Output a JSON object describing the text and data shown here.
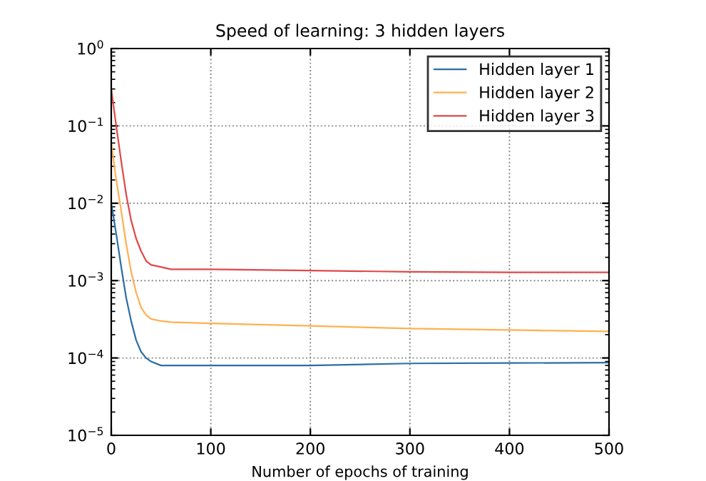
{
  "chart_data": {
    "type": "line",
    "title": "Speed of learning: 3 hidden layers",
    "xlabel": "Number of epochs of training",
    "x": [
      0,
      5,
      10,
      15,
      20,
      25,
      30,
      35,
      40,
      50,
      60,
      100,
      200,
      300,
      400,
      500
    ],
    "series": [
      {
        "name": "Hidden layer 1",
        "color": "#2c6ea6",
        "values": [
          0.01,
          0.004,
          0.0015,
          0.0006,
          0.0003,
          0.00017,
          0.00012,
          0.0001,
          9e-05,
          8e-05,
          8e-05,
          8e-05,
          8e-05,
          8.5e-05,
          8.6e-05,
          8.7e-05
        ]
      },
      {
        "name": "Hidden layer 2",
        "color": "#ffb050",
        "values": [
          0.06,
          0.02,
          0.008,
          0.003,
          0.0013,
          0.0007,
          0.00045,
          0.00036,
          0.00032,
          0.0003,
          0.00029,
          0.00028,
          0.00026,
          0.00024,
          0.00023,
          0.00022
        ]
      },
      {
        "name": "Hidden layer 3",
        "color": "#e04848",
        "values": [
          0.3,
          0.1,
          0.035,
          0.013,
          0.006,
          0.0035,
          0.0024,
          0.0018,
          0.0016,
          0.0015,
          0.0014,
          0.0014,
          0.00135,
          0.0013,
          0.00128,
          0.00128
        ]
      }
    ],
    "log": "y",
    "xlim": [
      0,
      500
    ],
    "xticks": [
      0,
      100,
      200,
      300,
      400,
      500
    ],
    "ylim": [
      1e-05,
      1
    ],
    "yticks": [
      {
        "value": 1e-05,
        "label": "10$^{−5}$"
      },
      {
        "value": 0.0001,
        "label": "10$^{−4}$"
      },
      {
        "value": 0.001,
        "label": "10$^{−3}$"
      },
      {
        "value": 0.01,
        "label": "10$^{−2}$"
      },
      {
        "value": 0.1,
        "label": "10$^{−1}$"
      },
      {
        "value": 1,
        "label": "10$^{0}$"
      }
    ],
    "grid": true,
    "legend": "top right",
    "line_style": "solid",
    "marker": "none"
  }
}
